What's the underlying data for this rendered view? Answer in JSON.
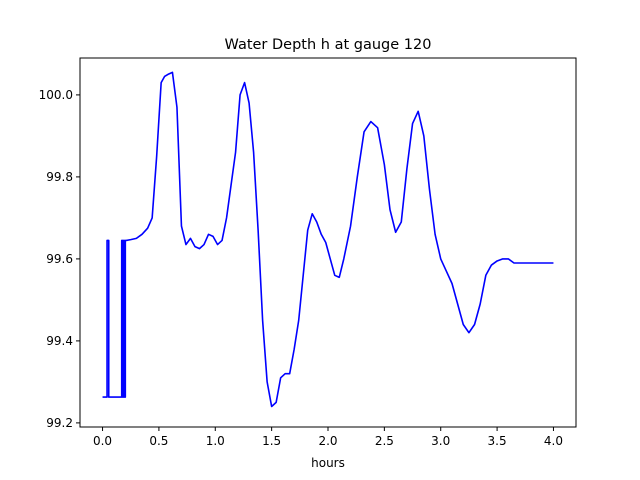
{
  "chart_data": {
    "type": "line",
    "title": "Water Depth h at gauge 120",
    "xlabel": "hours",
    "ylabel": "",
    "xlim": [
      -0.2,
      4.2
    ],
    "ylim": [
      99.19,
      100.09
    ],
    "xticks": [
      0.0,
      0.5,
      1.0,
      1.5,
      2.0,
      2.5,
      3.0,
      3.5,
      4.0
    ],
    "xtick_labels": [
      "0.0",
      "0.5",
      "1.0",
      "1.5",
      "2.0",
      "2.5",
      "3.0",
      "3.5",
      "4.0"
    ],
    "yticks": [
      99.2,
      99.4,
      99.6,
      99.8,
      100.0
    ],
    "ytick_labels": [
      "99.2",
      "99.4",
      "99.6",
      "99.8",
      "100.0"
    ],
    "grid": false,
    "legend": "none",
    "series": [
      {
        "color": "#0000ff",
        "x": [
          0.0,
          0.04,
          0.04,
          0.055,
          0.055,
          0.17,
          0.17,
          0.178,
          0.178,
          0.186,
          0.186,
          0.194,
          0.194,
          0.202,
          0.202,
          0.21,
          0.21,
          0.25,
          0.3,
          0.35,
          0.4,
          0.44,
          0.48,
          0.52,
          0.55,
          0.58,
          0.62,
          0.66,
          0.7,
          0.74,
          0.78,
          0.82,
          0.86,
          0.9,
          0.94,
          0.98,
          1.02,
          1.06,
          1.1,
          1.14,
          1.18,
          1.22,
          1.26,
          1.3,
          1.34,
          1.38,
          1.42,
          1.46,
          1.5,
          1.54,
          1.58,
          1.62,
          1.66,
          1.7,
          1.74,
          1.78,
          1.82,
          1.86,
          1.9,
          1.94,
          1.98,
          2.02,
          2.06,
          2.1,
          2.14,
          2.2,
          2.26,
          2.32,
          2.38,
          2.44,
          2.5,
          2.55,
          2.6,
          2.65,
          2.7,
          2.75,
          2.8,
          2.85,
          2.9,
          2.95,
          3.0,
          3.05,
          3.1,
          3.15,
          3.2,
          3.25,
          3.3,
          3.35,
          3.4,
          3.45,
          3.5,
          3.55,
          3.6,
          3.65,
          3.7,
          3.75,
          3.8,
          3.85,
          3.9,
          3.95,
          4.0
        ],
        "y": [
          99.263,
          99.263,
          99.645,
          99.645,
          99.263,
          99.263,
          99.645,
          99.645,
          99.263,
          99.263,
          99.645,
          99.645,
          99.263,
          99.263,
          99.645,
          99.645,
          99.645,
          99.647,
          99.65,
          99.66,
          99.675,
          99.7,
          99.85,
          100.03,
          100.045,
          100.05,
          100.055,
          99.97,
          99.68,
          99.635,
          99.65,
          99.63,
          99.625,
          99.635,
          99.66,
          99.655,
          99.635,
          99.645,
          99.7,
          99.78,
          99.86,
          100.0,
          100.03,
          99.98,
          99.86,
          99.67,
          99.45,
          99.3,
          99.24,
          99.25,
          99.31,
          99.32,
          99.32,
          99.38,
          99.45,
          99.56,
          99.67,
          99.71,
          99.69,
          99.66,
          99.64,
          99.6,
          99.56,
          99.555,
          99.6,
          99.68,
          99.8,
          99.91,
          99.935,
          99.92,
          99.83,
          99.72,
          99.665,
          99.69,
          99.82,
          99.93,
          99.96,
          99.9,
          99.77,
          99.66,
          99.6,
          99.57,
          99.54,
          99.49,
          99.44,
          99.42,
          99.44,
          99.49,
          99.56,
          99.585,
          99.595,
          99.6,
          99.6,
          99.59,
          99.59,
          99.59,
          99.59,
          99.59,
          99.59,
          99.59,
          99.59
        ]
      }
    ]
  }
}
